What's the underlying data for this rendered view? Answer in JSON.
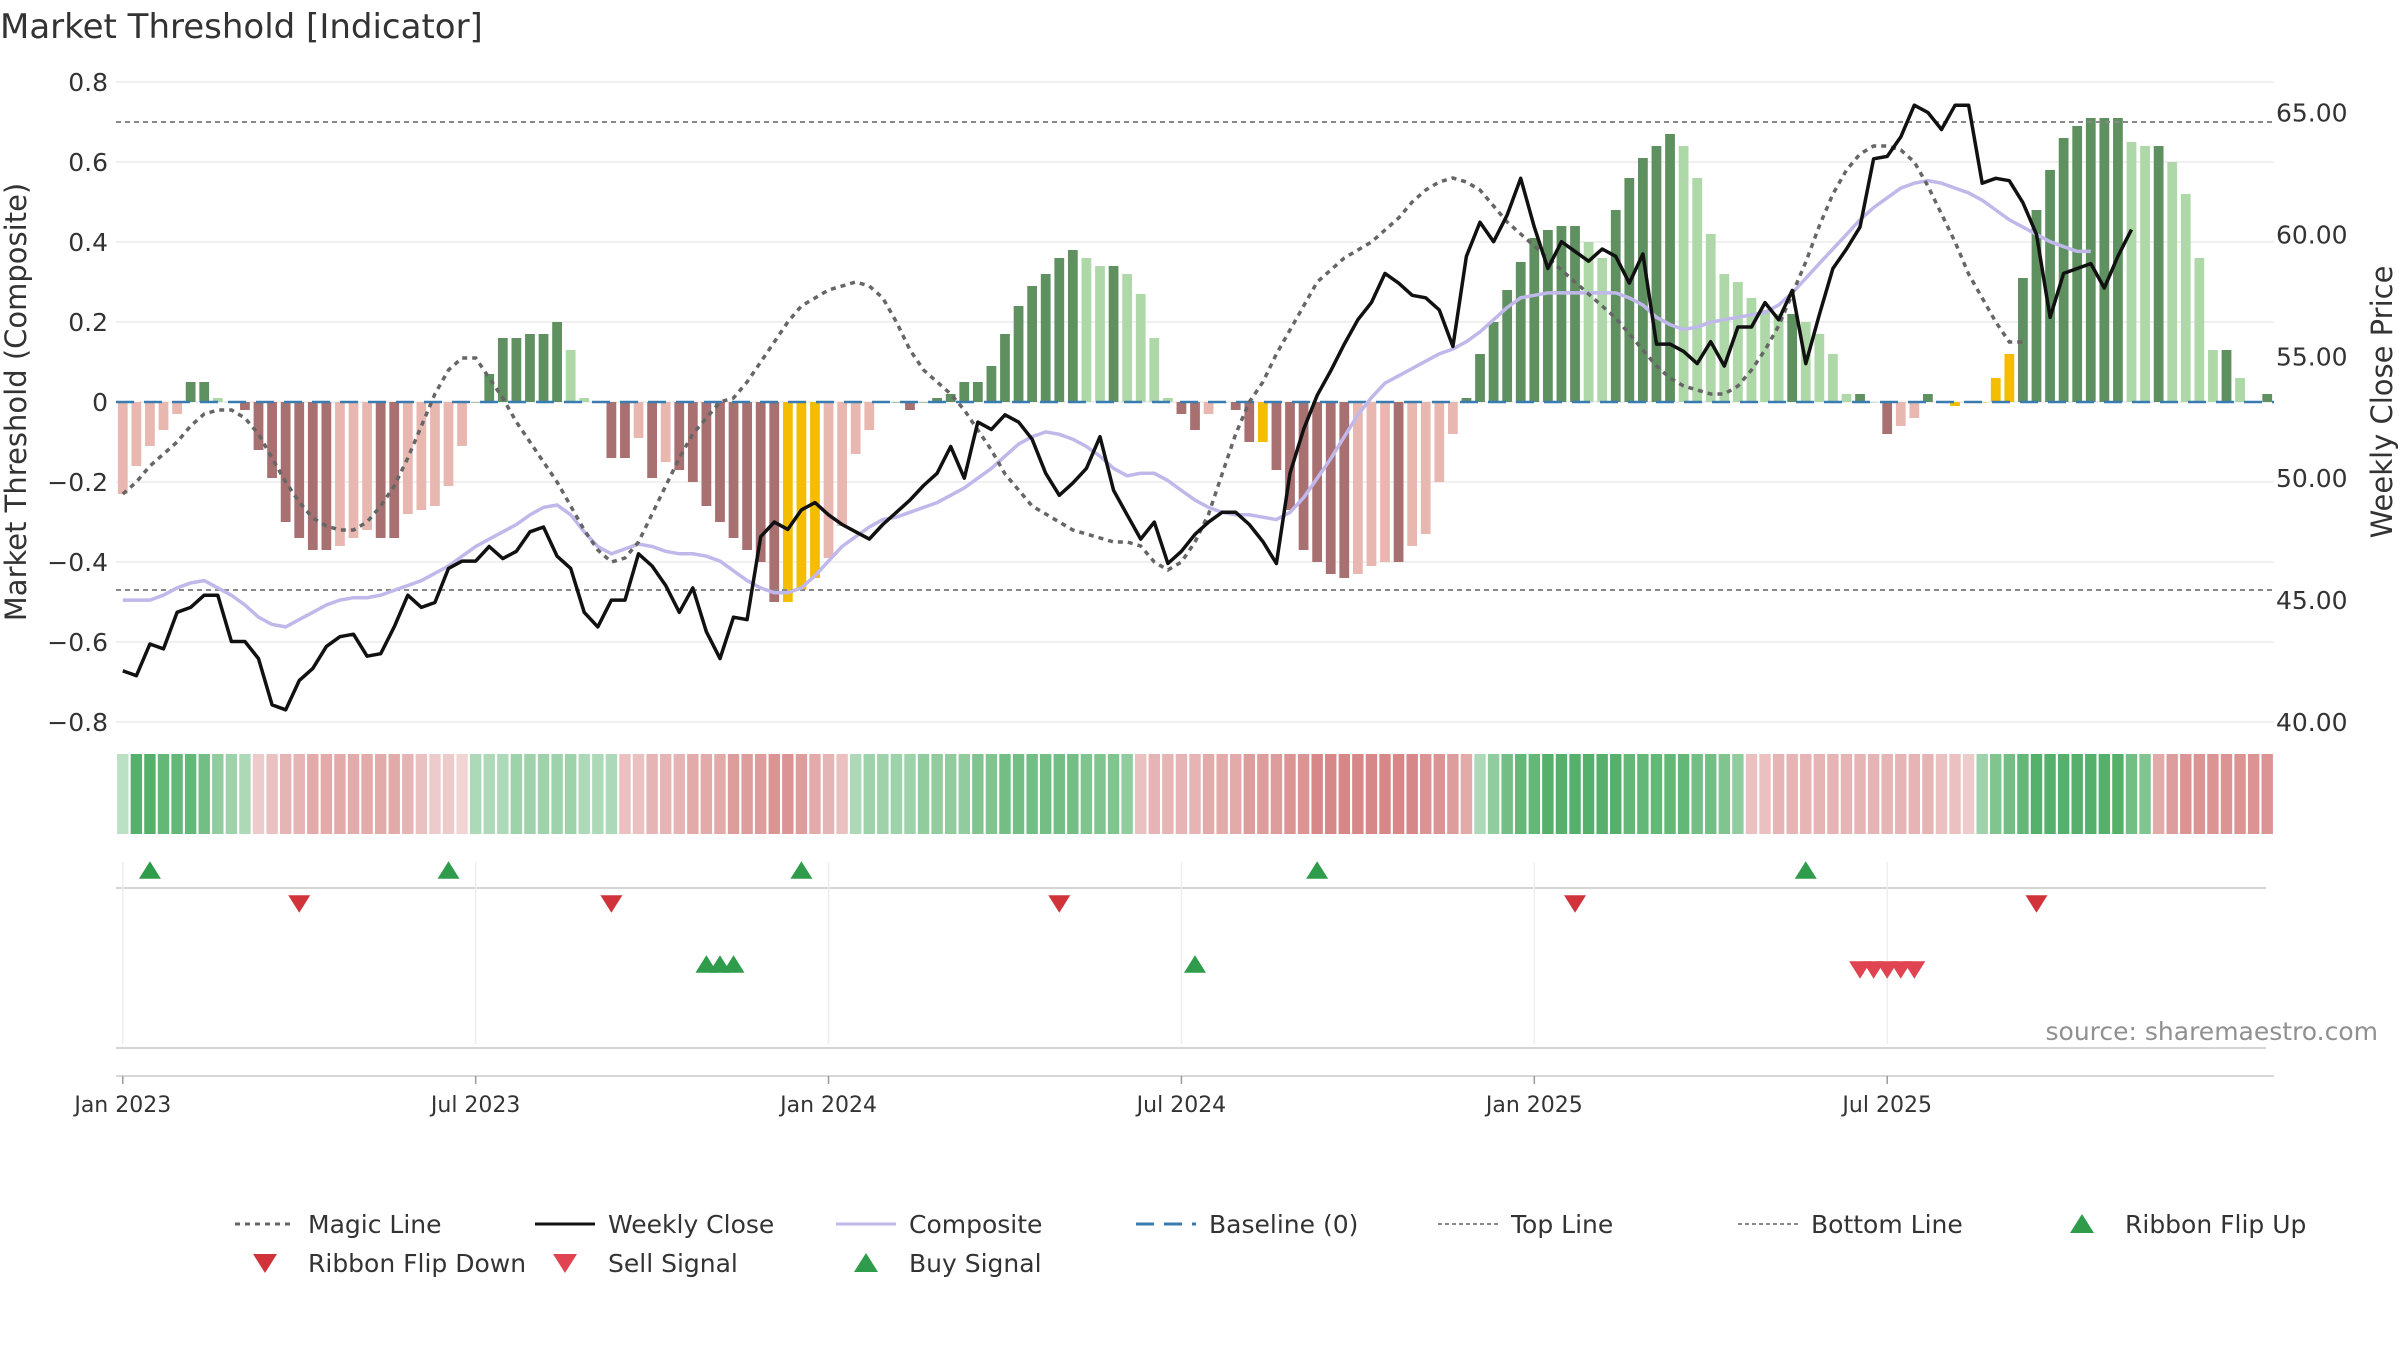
{
  "chart_data": {
    "type": "bar",
    "title": "Market Threshold [Indicator]",
    "ylabel_left": "Market Threshold (Composite)",
    "ylabel_right": "Weekly Close Price",
    "source": "source: sharemaestro.com",
    "ylim_left": [
      -0.8,
      0.8
    ],
    "ylim_right": [
      40,
      66.25
    ],
    "left_ticks": [
      {
        "v": 0.8,
        "label": "0.8"
      },
      {
        "v": 0.6,
        "label": "0.6"
      },
      {
        "v": 0.4,
        "label": "0.4"
      },
      {
        "v": 0.2,
        "label": "0.2"
      },
      {
        "v": 0,
        "label": "0"
      },
      {
        "v": -0.2,
        "label": "−0.2"
      },
      {
        "v": -0.4,
        "label": "−0.4"
      },
      {
        "v": -0.6,
        "label": "−0.6"
      },
      {
        "v": -0.8,
        "label": "−0.8"
      }
    ],
    "right_ticks": [
      {
        "v": 65,
        "label": "65.00"
      },
      {
        "v": 60,
        "label": "60.00"
      },
      {
        "v": 55,
        "label": "55.00"
      },
      {
        "v": 50,
        "label": "50.00"
      },
      {
        "v": 45,
        "label": "45.00"
      },
      {
        "v": 40,
        "label": "40.00"
      }
    ],
    "x_ticks": [
      {
        "week": 1,
        "label": "Jan 2023"
      },
      {
        "week": 27,
        "label": "Jul 2023"
      },
      {
        "week": 53,
        "label": "Jan 2024"
      },
      {
        "week": 79,
        "label": "Jul 2024"
      },
      {
        "week": 105,
        "label": "Jan 2025"
      },
      {
        "week": 131,
        "label": "Jul 2025"
      }
    ],
    "top_line": 0.7,
    "bottom_line": -0.47,
    "baseline": 0,
    "composite_bars": [
      -0.23,
      -0.16,
      -0.11,
      -0.07,
      -0.03,
      0.05,
      0.05,
      0.01,
      0,
      -0.02,
      -0.12,
      -0.19,
      -0.3,
      -0.34,
      -0.37,
      -0.37,
      -0.36,
      -0.34,
      -0.32,
      -0.34,
      -0.34,
      -0.28,
      -0.27,
      -0.26,
      -0.21,
      -0.11,
      0,
      0.07,
      0.16,
      0.16,
      0.17,
      0.17,
      0.2,
      0.13,
      0.01,
      0,
      -0.14,
      -0.14,
      -0.09,
      -0.19,
      -0.15,
      -0.17,
      -0.2,
      -0.26,
      -0.3,
      -0.34,
      -0.37,
      -0.4,
      -0.5,
      -0.5,
      -0.47,
      -0.44,
      -0.39,
      -0.31,
      -0.13,
      -0.07,
      0,
      0,
      -0.02,
      0,
      0.01,
      0.02,
      0.05,
      0.05,
      0.09,
      0.17,
      0.24,
      0.29,
      0.32,
      0.36,
      0.38,
      0.36,
      0.34,
      0.34,
      0.32,
      0.27,
      0.16,
      0.01,
      -0.03,
      -0.07,
      -0.03,
      0,
      -0.02,
      -0.1,
      -0.1,
      -0.17,
      -0.27,
      -0.37,
      -0.4,
      -0.43,
      -0.44,
      -0.43,
      -0.41,
      -0.4,
      -0.4,
      -0.36,
      -0.33,
      -0.2,
      -0.08,
      0.01,
      0.12,
      0.2,
      0.28,
      0.35,
      0.41,
      0.43,
      0.44,
      0.44,
      0.4,
      0.36,
      0.48,
      0.56,
      0.61,
      0.64,
      0.67,
      0.64,
      0.56,
      0.42,
      0.32,
      0.3,
      0.26,
      0.23,
      0.22,
      0.22,
      0.2,
      0.17,
      0.12,
      0.02,
      0.02,
      0,
      -0.08,
      -0.06,
      -0.04,
      0.02,
      0,
      -0.01,
      0,
      0,
      0.06,
      0.12,
      0.31,
      0.48,
      0.58,
      0.66,
      0.69,
      0.71,
      0.71,
      0.71,
      0.65,
      0.64,
      0.64,
      0.6,
      0.52,
      0.36,
      0.13,
      0.13,
      0.06,
      0,
      0.02
    ],
    "bar_colors": {
      "up_strong": "#5e9060",
      "up_weak": "#aed8a8",
      "down_strong": "#a87070",
      "down_weak": "#e8b8b0",
      "extreme": "#f5bd00"
    },
    "extreme_weeks": [
      49,
      50,
      51,
      84,
      135,
      136,
      137,
      138,
      139
    ],
    "weekly_close": [
      42.1,
      41.9,
      43.2,
      43,
      44.5,
      44.7,
      45.2,
      45.2,
      43.3,
      43.3,
      42.6,
      40.7,
      40.5,
      41.7,
      42.2,
      43.1,
      43.5,
      43.6,
      42.7,
      42.8,
      43.9,
      45.2,
      44.7,
      44.9,
      46.3,
      46.6,
      46.6,
      47.2,
      46.7,
      47,
      47.8,
      48,
      46.8,
      46.3,
      44.5,
      43.9,
      45,
      45,
      46.9,
      46.4,
      45.6,
      44.5,
      45.5,
      43.7,
      42.6,
      44.3,
      44.2,
      47.6,
      48.2,
      47.9,
      48.7,
      49,
      48.5,
      48.1,
      47.8,
      47.5,
      48.1,
      48.6,
      49.1,
      49.7,
      50.2,
      51.3,
      50,
      52.3,
      52,
      52.6,
      52.3,
      51.6,
      50.2,
      49.3,
      49.8,
      50.4,
      51.7,
      49.5,
      48.5,
      47.5,
      48.2,
      46.5,
      47,
      47.7,
      48.2,
      48.6,
      48.6,
      48.1,
      47.4,
      46.5,
      50.2,
      52,
      53.4,
      54.4,
      55.5,
      56.5,
      57.2,
      58.4,
      58,
      57.5,
      57.4,
      56.9,
      55.4,
      59.1,
      60.5,
      59.7,
      60.8,
      62.3,
      60.3,
      58.6,
      59.7,
      59.3,
      58.9,
      59.4,
      59.1,
      58,
      59.2,
      55.5,
      55.5,
      55.2,
      54.7,
      55.6,
      54.6,
      56.2,
      56.2,
      57.2,
      56.5,
      57.7,
      54.7,
      56.7,
      58.6,
      59.4,
      60.3,
      63.1,
      63.2,
      64,
      65.3,
      65,
      64.3,
      65.3,
      65.3,
      62.1,
      62.3,
      62.2,
      61.3,
      60,
      56.6,
      58.4,
      58.6,
      58.8,
      57.8,
      59.1,
      60.2
    ],
    "composite_line": [
      45,
      45,
      45,
      45.2,
      45.5,
      45.7,
      45.8,
      45.5,
      45.2,
      44.8,
      44.3,
      44,
      43.9,
      44.2,
      44.5,
      44.8,
      45,
      45.1,
      45.1,
      45.2,
      45.4,
      45.6,
      45.8,
      46.1,
      46.4,
      46.8,
      47.2,
      47.5,
      47.8,
      48.1,
      48.5,
      48.8,
      48.9,
      48.5,
      47.8,
      47.2,
      46.9,
      47.1,
      47.3,
      47.2,
      47,
      46.9,
      46.9,
      46.8,
      46.6,
      46.2,
      45.8,
      45.5,
      45.3,
      45.3,
      45.5,
      46,
      46.6,
      47.2,
      47.6,
      48,
      48.3,
      48.4,
      48.6,
      48.8,
      49,
      49.3,
      49.6,
      50,
      50.4,
      50.9,
      51.4,
      51.7,
      51.9,
      51.8,
      51.6,
      51.3,
      50.9,
      50.4,
      50.1,
      50.2,
      50.2,
      49.9,
      49.5,
      49.1,
      48.8,
      48.6,
      48.5,
      48.5,
      48.4,
      48.3,
      48.6,
      49.2,
      50,
      50.8,
      51.7,
      52.6,
      53.3,
      53.9,
      54.2,
      54.5,
      54.8,
      55.1,
      55.3,
      55.6,
      56,
      56.5,
      57,
      57.4,
      57.5,
      57.6,
      57.6,
      57.6,
      57.6,
      57.6,
      57.6,
      57.4,
      57.1,
      56.6,
      56.3,
      56.1,
      56.2,
      56.4,
      56.5,
      56.6,
      56.7,
      56.8,
      57.1,
      57.6,
      58.2,
      58.8,
      59.4,
      60,
      60.6,
      61.1,
      61.5,
      61.9,
      62.1,
      62.2,
      62.1,
      61.9,
      61.7,
      61.4,
      61,
      60.6,
      60.3,
      60,
      59.7,
      59.5,
      59.3,
      59.3
    ],
    "magic_line": [
      -0.23,
      -0.2,
      -0.16,
      -0.13,
      -0.1,
      -0.06,
      -0.03,
      -0.02,
      -0.02,
      -0.04,
      -0.08,
      -0.14,
      -0.2,
      -0.25,
      -0.29,
      -0.31,
      -0.32,
      -0.32,
      -0.3,
      -0.26,
      -0.21,
      -0.14,
      -0.06,
      0.02,
      0.08,
      0.11,
      0.11,
      0.06,
      0.01,
      -0.05,
      -0.1,
      -0.15,
      -0.2,
      -0.26,
      -0.32,
      -0.37,
      -0.4,
      -0.39,
      -0.35,
      -0.28,
      -0.21,
      -0.14,
      -0.08,
      -0.04,
      0,
      0.01,
      0.05,
      0.1,
      0.15,
      0.2,
      0.24,
      0.26,
      0.28,
      0.29,
      0.3,
      0.29,
      0.26,
      0.2,
      0.13,
      0.08,
      0.05,
      0.02,
      -0.02,
      -0.07,
      -0.12,
      -0.18,
      -0.22,
      -0.26,
      -0.28,
      -0.3,
      -0.32,
      -0.33,
      -0.34,
      -0.35,
      -0.35,
      -0.36,
      -0.4,
      -0.42,
      -0.4,
      -0.35,
      -0.28,
      -0.18,
      -0.08,
      0,
      0.05,
      0.12,
      0.18,
      0.24,
      0.3,
      0.33,
      0.36,
      0.38,
      0.4,
      0.43,
      0.46,
      0.5,
      0.53,
      0.55,
      0.56,
      0.55,
      0.53,
      0.49,
      0.45,
      0.42,
      0.39,
      0.36,
      0.33,
      0.3,
      0.27,
      0.24,
      0.21,
      0.17,
      0.13,
      0.09,
      0.06,
      0.04,
      0.03,
      0.02,
      0.02,
      0.04,
      0.08,
      0.13,
      0.19,
      0.27,
      0.35,
      0.44,
      0.52,
      0.58,
      0.62,
      0.64,
      0.64,
      0.63,
      0.6,
      0.54,
      0.47,
      0.4,
      0.32,
      0.26,
      0.2,
      0.15,
      0.15
    ],
    "ribbon": [
      0.2,
      0.9,
      0.9,
      0.8,
      0.8,
      0.8,
      0.7,
      0.5,
      0.4,
      0.3,
      -0.2,
      -0.3,
      -0.4,
      -0.4,
      -0.5,
      -0.5,
      -0.5,
      -0.5,
      -0.5,
      -0.5,
      -0.5,
      -0.4,
      -0.3,
      -0.2,
      -0.2,
      -0.1,
      0.3,
      0.3,
      0.3,
      0.4,
      0.4,
      0.4,
      0.4,
      0.4,
      0.3,
      0.3,
      0.3,
      -0.3,
      -0.3,
      -0.4,
      -0.4,
      -0.4,
      -0.5,
      -0.5,
      -0.5,
      -0.6,
      -0.6,
      -0.6,
      -0.7,
      -0.7,
      -0.6,
      -0.5,
      -0.4,
      -0.3,
      0.3,
      0.4,
      0.4,
      0.4,
      0.4,
      0.5,
      0.5,
      0.5,
      0.5,
      0.6,
      0.6,
      0.7,
      0.7,
      0.7,
      0.7,
      0.7,
      0.7,
      0.6,
      0.6,
      0.6,
      0.5,
      -0.3,
      -0.4,
      -0.4,
      -0.4,
      -0.4,
      -0.5,
      -0.5,
      -0.5,
      -0.6,
      -0.6,
      -0.6,
      -0.7,
      -0.7,
      -0.8,
      -0.8,
      -0.8,
      -0.8,
      -0.8,
      -0.8,
      -0.8,
      -0.8,
      -0.7,
      -0.7,
      -0.6,
      -0.5,
      0.3,
      0.5,
      0.7,
      0.8,
      0.8,
      0.9,
      0.9,
      0.9,
      0.9,
      0.9,
      0.9,
      0.8,
      0.8,
      0.8,
      0.8,
      0.8,
      0.7,
      0.7,
      0.6,
      0.5,
      -0.3,
      -0.3,
      -0.4,
      -0.4,
      -0.4,
      -0.4,
      -0.4,
      -0.4,
      -0.4,
      -0.4,
      -0.4,
      -0.4,
      -0.4,
      -0.4,
      -0.3,
      -0.3,
      -0.2,
      0.4,
      0.6,
      0.7,
      0.8,
      0.9,
      0.9,
      0.9,
      0.9,
      0.9,
      0.9,
      0.9,
      0.7,
      0.6,
      -0.5,
      -0.6,
      -0.7,
      -0.7,
      -0.7,
      -0.7,
      -0.7,
      -0.7,
      -0.7
    ],
    "ribbon_flip_up": [
      2,
      24,
      50,
      88,
      124
    ],
    "ribbon_flip_down": [
      13,
      36,
      69,
      107,
      141
    ],
    "buy_signal": [
      43,
      44,
      45,
      79
    ],
    "sell_signal": [
      128,
      129,
      130,
      131,
      132
    ],
    "legend": [
      {
        "label": "Magic Line",
        "kind": "dotted",
        "color": "#666666"
      },
      {
        "label": "Weekly Close",
        "kind": "solid",
        "color": "#111111"
      },
      {
        "label": "Composite",
        "kind": "solid",
        "color": "#c0b8ea"
      },
      {
        "label": "Baseline (0)",
        "kind": "dashed",
        "color": "#3a7cb0"
      },
      {
        "label": "Top Line",
        "kind": "fine-dotted",
        "color": "#888888"
      },
      {
        "label": "Bottom Line",
        "kind": "fine-dotted",
        "color": "#888888"
      },
      {
        "label": "Ribbon Flip Up",
        "kind": "tri-up",
        "color": "#2e9c4a"
      },
      {
        "label": "Ribbon Flip Down",
        "kind": "tri-down",
        "color": "#d0343a"
      },
      {
        "label": "Sell Signal",
        "kind": "tri-down",
        "color": "#e04450"
      },
      {
        "label": "Buy Signal",
        "kind": "tri-up",
        "color": "#2e9c4a"
      }
    ]
  }
}
